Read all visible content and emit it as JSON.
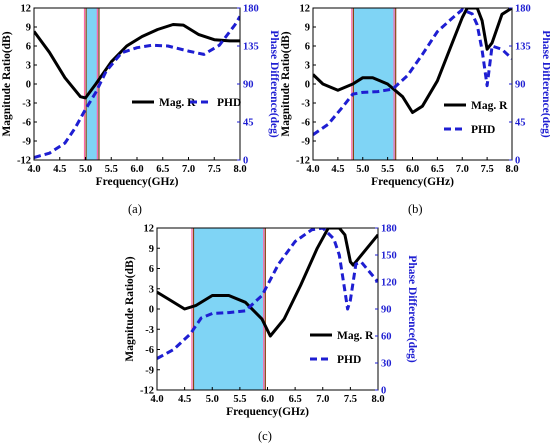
{
  "panel_labels": [
    "(a)",
    "(b)",
    "(c)"
  ],
  "chart_data": [
    {
      "type": "line",
      "panel": "(a)",
      "xlabel": "Frequency(GHz)",
      "ylabel": "Magnitude Ratio(dB)",
      "y2label": "Phase Difference(deg)",
      "xlim": [
        4.0,
        8.0
      ],
      "ylim": [
        -12,
        12
      ],
      "y2lim": [
        0,
        180
      ],
      "xticks": [
        "4.0",
        "4.5",
        "5.0",
        "5.5",
        "6.0",
        "6.5",
        "7.0",
        "7.5",
        "8.0"
      ],
      "yticks": [
        "-12",
        "-9",
        "-6",
        "-3",
        "0",
        "3",
        "6",
        "9",
        "12"
      ],
      "y2ticks": [
        "0",
        "45",
        "90",
        "135",
        "180"
      ],
      "shaded_band": [
        5.0,
        5.25
      ],
      "band_color": "#7fd4f5",
      "band_edge_colors": [
        "#ff66aa",
        "#8b4513"
      ],
      "legend_position": "center-right",
      "series": [
        {
          "name": "Mag. R",
          "axis": "left",
          "color": "#000000",
          "style": "solid",
          "x": [
            4.0,
            4.3,
            4.6,
            4.9,
            5.0,
            5.2,
            5.5,
            5.8,
            6.1,
            6.4,
            6.7,
            6.9,
            7.2,
            7.5,
            7.8,
            8.0
          ],
          "y": [
            8.3,
            5.0,
            1.0,
            -2.0,
            -2.2,
            0.0,
            3.5,
            6.0,
            7.5,
            8.6,
            9.4,
            9.3,
            7.8,
            7.0,
            6.8,
            6.8
          ]
        },
        {
          "name": "PHD",
          "axis": "right",
          "color": "#1e1ed2",
          "style": "dashed",
          "x": [
            4.0,
            4.3,
            4.6,
            4.8,
            5.0,
            5.2,
            5.4,
            5.7,
            6.0,
            6.3,
            6.6,
            7.0,
            7.3,
            7.6,
            7.9,
            8.0
          ],
          "y": [
            3,
            8,
            20,
            38,
            60,
            80,
            105,
            127,
            133,
            136,
            135,
            129,
            125,
            136,
            160,
            170
          ]
        }
      ]
    },
    {
      "type": "line",
      "panel": "(b)",
      "xlabel": "Frequency(GHz)",
      "ylabel": "Magnitude Ratio(dB)",
      "y2label": "Phase Difference(deg)",
      "xlim": [
        4.0,
        8.0
      ],
      "ylim": [
        -12,
        12
      ],
      "y2lim": [
        0,
        180
      ],
      "xticks": [
        "4.0",
        "4.5",
        "5.0",
        "5.5",
        "6.0",
        "6.5",
        "7.0",
        "7.5",
        "8.0"
      ],
      "yticks": [
        "-12",
        "-9",
        "-6",
        "-3",
        "0",
        "3",
        "6",
        "9",
        "12"
      ],
      "y2ticks": [
        "0",
        "45",
        "90",
        "135",
        "180"
      ],
      "shaded_band": [
        4.8,
        5.65
      ],
      "band_color": "#7fd4f5",
      "band_edge_colors": [
        "#ff66aa",
        "#8b4513"
      ],
      "legend_position": "bottom-right",
      "series": [
        {
          "name": "Mag. R",
          "axis": "left",
          "color": "#000000",
          "style": "solid",
          "x": [
            4.0,
            4.2,
            4.5,
            4.8,
            5.0,
            5.2,
            5.5,
            5.8,
            6.0,
            6.2,
            6.5,
            6.8,
            7.0,
            7.1,
            7.2,
            7.3,
            7.4,
            7.5,
            7.6,
            7.8,
            8.0
          ],
          "y": [
            1.5,
            0.0,
            -1.0,
            0.0,
            1.0,
            1.0,
            0.0,
            -2.0,
            -4.5,
            -3.5,
            0.5,
            6.5,
            10.5,
            12.0,
            12.0,
            12.0,
            10.0,
            5.5,
            6.5,
            11.0,
            12.0
          ]
        },
        {
          "name": "PHD",
          "axis": "right",
          "color": "#1e1ed2",
          "style": "dashed",
          "x": [
            4.0,
            4.3,
            4.6,
            4.8,
            5.0,
            5.3,
            5.6,
            5.9,
            6.2,
            6.5,
            6.8,
            7.0,
            7.2,
            7.3,
            7.4,
            7.5,
            7.6,
            7.8,
            8.0
          ],
          "y": [
            30,
            42,
            63,
            78,
            80,
            81,
            84,
            100,
            125,
            152,
            168,
            178,
            173,
            160,
            130,
            88,
            135,
            131,
            120
          ]
        }
      ]
    },
    {
      "type": "line",
      "panel": "(c)",
      "xlabel": "Frequency(GHz)",
      "ylabel": "Magnitude Ratio(dB)",
      "y2label": "Phase Difference(deg)",
      "xlim": [
        4.0,
        8.0
      ],
      "ylim": [
        -12,
        12
      ],
      "y2lim": [
        0,
        180
      ],
      "xticks": [
        "4.0",
        "4.5",
        "5.0",
        "5.5",
        "6.0",
        "6.5",
        "7.0",
        "7.5",
        "8.0"
      ],
      "yticks": [
        "-12",
        "-9",
        "-6",
        "-3",
        "0",
        "3",
        "6",
        "9",
        "12"
      ],
      "y2ticks": [
        "0",
        "30",
        "60",
        "90",
        "120",
        "150",
        "180"
      ],
      "shaded_band": [
        4.65,
        5.95
      ],
      "band_color": "#7fd4f5",
      "band_edge_colors": [
        "#ff66aa",
        "#8b4513"
      ],
      "legend_position": "bottom-right",
      "series": [
        {
          "name": "Mag. R",
          "axis": "left",
          "color": "#000000",
          "style": "solid",
          "x": [
            4.0,
            4.2,
            4.5,
            4.7,
            5.0,
            5.3,
            5.6,
            5.9,
            6.05,
            6.3,
            6.6,
            6.9,
            7.1,
            7.2,
            7.3,
            7.4,
            7.5,
            7.55,
            7.6,
            7.8,
            8.0
          ],
          "y": [
            2.5,
            1.5,
            0.0,
            0.5,
            2.0,
            2.0,
            1.0,
            -1.5,
            -4.0,
            -1.5,
            3.5,
            9.0,
            12.0,
            12.0,
            12.0,
            11.0,
            7.0,
            6.5,
            7.0,
            9.0,
            11.0
          ]
        },
        {
          "name": "PHD",
          "axis": "right",
          "color": "#1e1ed2",
          "style": "dashed",
          "x": [
            4.0,
            4.3,
            4.6,
            4.8,
            5.0,
            5.3,
            5.6,
            5.9,
            6.2,
            6.5,
            6.8,
            7.0,
            7.2,
            7.3,
            7.4,
            7.45,
            7.5,
            7.6,
            7.7,
            8.0
          ],
          "y": [
            35,
            45,
            62,
            80,
            85,
            86,
            88,
            105,
            140,
            165,
            178,
            180,
            168,
            150,
            110,
            90,
            100,
            140,
            142,
            120
          ]
        }
      ]
    }
  ]
}
